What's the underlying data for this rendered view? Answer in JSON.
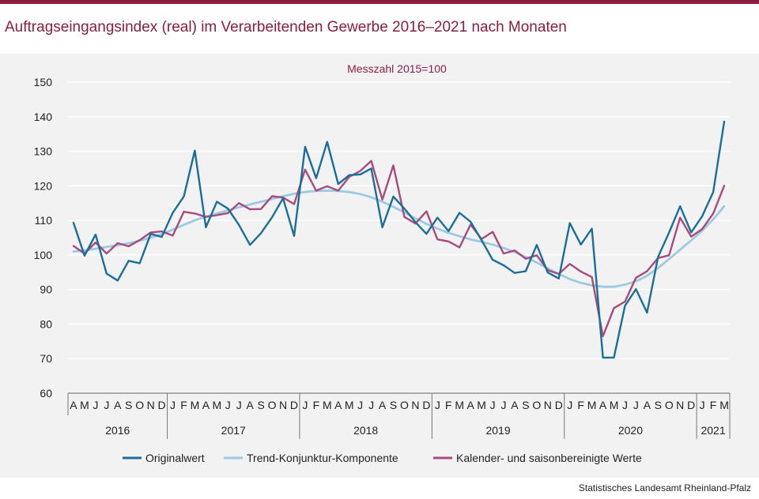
{
  "header": {
    "title": "Auftragseingangsindex (real) im Verarbeitenden Gewerbe 2016–2021 nach Monaten"
  },
  "footer": {
    "source": "Statistisches Landesamt Rheinland-Pfalz"
  },
  "colors": {
    "brand": "#8b1e3f",
    "original": "#1a6e99",
    "trend": "#9bcbe2",
    "adjusted": "#a64b7c"
  },
  "chart_data": {
    "type": "line",
    "subtitle": "Messzahl 2015=100",
    "ylim": [
      60,
      150
    ],
    "yticks": [
      60,
      70,
      80,
      90,
      100,
      110,
      120,
      130,
      140,
      150
    ],
    "grid": true,
    "legend_position": "bottom",
    "categories": [
      "A",
      "M",
      "J",
      "J",
      "A",
      "S",
      "O",
      "N",
      "D",
      "J",
      "F",
      "M",
      "A",
      "M",
      "J",
      "J",
      "A",
      "S",
      "O",
      "N",
      "D",
      "J",
      "F",
      "M",
      "A",
      "M",
      "J",
      "J",
      "A",
      "S",
      "O",
      "N",
      "D",
      "J",
      "F",
      "M",
      "A",
      "M",
      "J",
      "J",
      "A",
      "S",
      "O",
      "N",
      "D",
      "J",
      "F",
      "M",
      "A",
      "M",
      "J",
      "J",
      "A",
      "S",
      "O",
      "N",
      "D",
      "J",
      "F",
      "M"
    ],
    "years": [
      {
        "label": "2016",
        "months": 9
      },
      {
        "label": "2017",
        "months": 12
      },
      {
        "label": "2018",
        "months": 12
      },
      {
        "label": "2019",
        "months": 12
      },
      {
        "label": "2020",
        "months": 12
      },
      {
        "label": "2021",
        "months": 3
      }
    ],
    "series": [
      {
        "name": "Originalwert",
        "color": "#1a6e99",
        "values": [
          109.3,
          99.8,
          105.9,
          94.6,
          92.6,
          98.3,
          97.6,
          106.1,
          105.2,
          112.2,
          116.9,
          130.2,
          108.0,
          115.4,
          113.4,
          108.7,
          102.9,
          106.3,
          110.9,
          116.4,
          105.5,
          131.3,
          122.2,
          132.7,
          120.5,
          123.1,
          123.3,
          125.0,
          108.0,
          116.9,
          113.4,
          109.5,
          106.1,
          110.8,
          106.9,
          112.2,
          109.6,
          104.3,
          98.6,
          97.0,
          94.8,
          95.3,
          102.9,
          94.9,
          93.2,
          109.2,
          103.0,
          107.6,
          70.3,
          70.3,
          85.3,
          90.1,
          83.3,
          99.4,
          106.5,
          114.1,
          106.5,
          111.2,
          118.2,
          138.6
        ]
      },
      {
        "name": "Trend-Konjunktur-Komponente",
        "color": "#9bcbe2",
        "values": [
          101.0,
          101.3,
          101.8,
          102.3,
          102.8,
          103.4,
          104.1,
          105.0,
          106.0,
          107.3,
          108.7,
          110.0,
          111.1,
          112.0,
          112.9,
          113.8,
          114.6,
          115.4,
          116.2,
          117.0,
          117.7,
          118.2,
          118.5,
          118.6,
          118.5,
          118.2,
          117.6,
          116.7,
          115.4,
          113.9,
          112.3,
          110.6,
          109.0,
          107.6,
          106.4,
          105.4,
          104.5,
          103.8,
          103.0,
          102.0,
          100.8,
          99.4,
          97.8,
          96.1,
          94.5,
          93.0,
          91.9,
          91.2,
          90.8,
          90.8,
          91.4,
          92.4,
          94.0,
          96.2,
          98.8,
          101.5,
          104.2,
          107.0,
          110.3,
          114.1
        ]
      },
      {
        "name": "Kalender- und saisonbereinigte Werte",
        "color": "#a64b7c",
        "values": [
          102.6,
          100.4,
          103.6,
          100.4,
          103.4,
          102.5,
          104.3,
          106.5,
          106.8,
          105.6,
          112.5,
          112.0,
          111.0,
          111.5,
          112.1,
          115.0,
          113.2,
          113.3,
          117.0,
          116.6,
          114.7,
          124.7,
          118.6,
          119.9,
          118.6,
          122.6,
          124.3,
          127.2,
          116.0,
          125.9,
          111.0,
          109.1,
          112.6,
          104.5,
          103.9,
          102.2,
          108.8,
          104.6,
          106.7,
          100.4,
          101.3,
          98.9,
          99.9,
          95.6,
          94.5,
          97.4,
          95.2,
          93.6,
          76.5,
          84.6,
          86.5,
          93.4,
          95.3,
          99.1,
          99.9,
          110.8,
          105.3,
          107.5,
          112.0,
          120.0
        ]
      }
    ]
  }
}
